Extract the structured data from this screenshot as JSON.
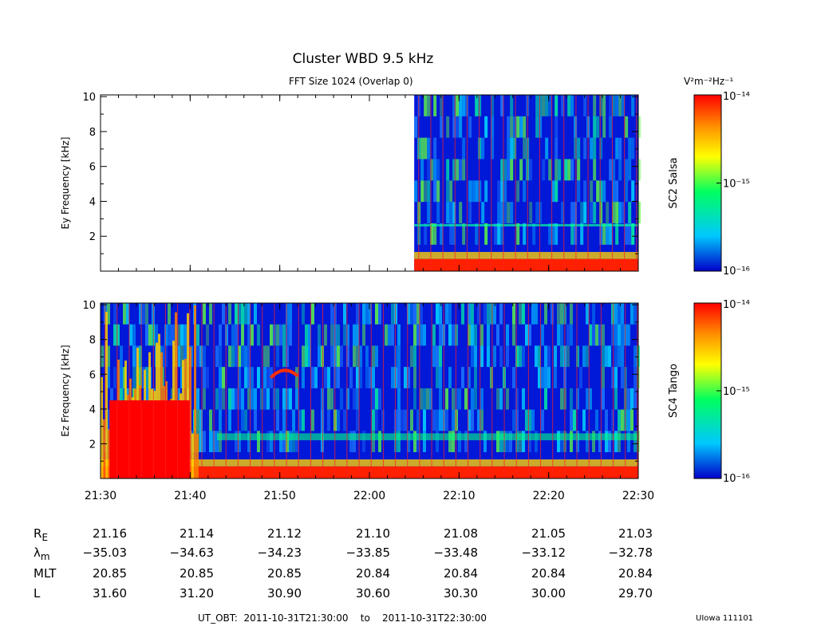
{
  "title": "Cluster WBD 9.5 kHz",
  "subtitle": "FFT Size 1024 (Overlap      0)",
  "colorbar_units": "V²m⁻²Hz⁻¹",
  "chart_data": [
    {
      "type": "heatmap",
      "panel": "top",
      "ylabel": "Ey Frequency [kHz]",
      "spacecraft_label": "SC2 Salsa",
      "ylim": [
        0,
        10.1
      ],
      "yticks": [
        2,
        4,
        6,
        8,
        10
      ],
      "xlim": [
        "21:30",
        "22:30"
      ],
      "xticks": [
        "21:30",
        "21:40",
        "21:50",
        "22:00",
        "22:10",
        "22:20",
        "22:30"
      ],
      "data_start": "22:05",
      "colorbar_ticks": [
        "10⁻¹⁴",
        "10⁻¹⁵",
        "10⁻¹⁶"
      ],
      "colorbar_range": [
        1e-16,
        1e-14
      ]
    },
    {
      "type": "heatmap",
      "panel": "bottom",
      "ylabel": "Ez Frequency [kHz]",
      "spacecraft_label": "SC4 Tango",
      "ylim": [
        0,
        10.1
      ],
      "yticks": [
        2,
        4,
        6,
        8,
        10
      ],
      "xlim": [
        "21:30",
        "22:30"
      ],
      "xticks": [
        "21:30",
        "21:40",
        "21:50",
        "22:00",
        "22:10",
        "22:20",
        "22:30"
      ],
      "data_start": "21:30",
      "colorbar_ticks": [
        "10⁻¹⁴",
        "10⁻¹⁵",
        "10⁻¹⁶"
      ],
      "colorbar_range": [
        1e-16,
        1e-14
      ]
    }
  ],
  "ephemeris": {
    "rows": [
      {
        "label_main": "R",
        "label_sub": "E",
        "values": [
          "21.16",
          "21.14",
          "21.12",
          "21.10",
          "21.08",
          "21.05",
          "21.03"
        ]
      },
      {
        "label_main": "λ",
        "label_sub": "m",
        "values": [
          "−35.03",
          "−34.63",
          "−34.23",
          "−33.85",
          "−33.48",
          "−33.12",
          "−32.78"
        ]
      },
      {
        "label_main": "MLT",
        "label_sub": "",
        "values": [
          "20.85",
          "20.85",
          "20.85",
          "20.84",
          "20.84",
          "20.84",
          "20.84"
        ]
      },
      {
        "label_main": "L",
        "label_sub": "",
        "values": [
          "31.60",
          "31.20",
          "30.90",
          "30.60",
          "30.30",
          "30.00",
          "29.70"
        ]
      }
    ]
  },
  "ut_line": {
    "label": "UT_OBT:",
    "start": "2011-10-31T21:30:00",
    "to": "to",
    "end": "2011-10-31T22:30:00"
  },
  "footer_code": "UIowa 111101"
}
